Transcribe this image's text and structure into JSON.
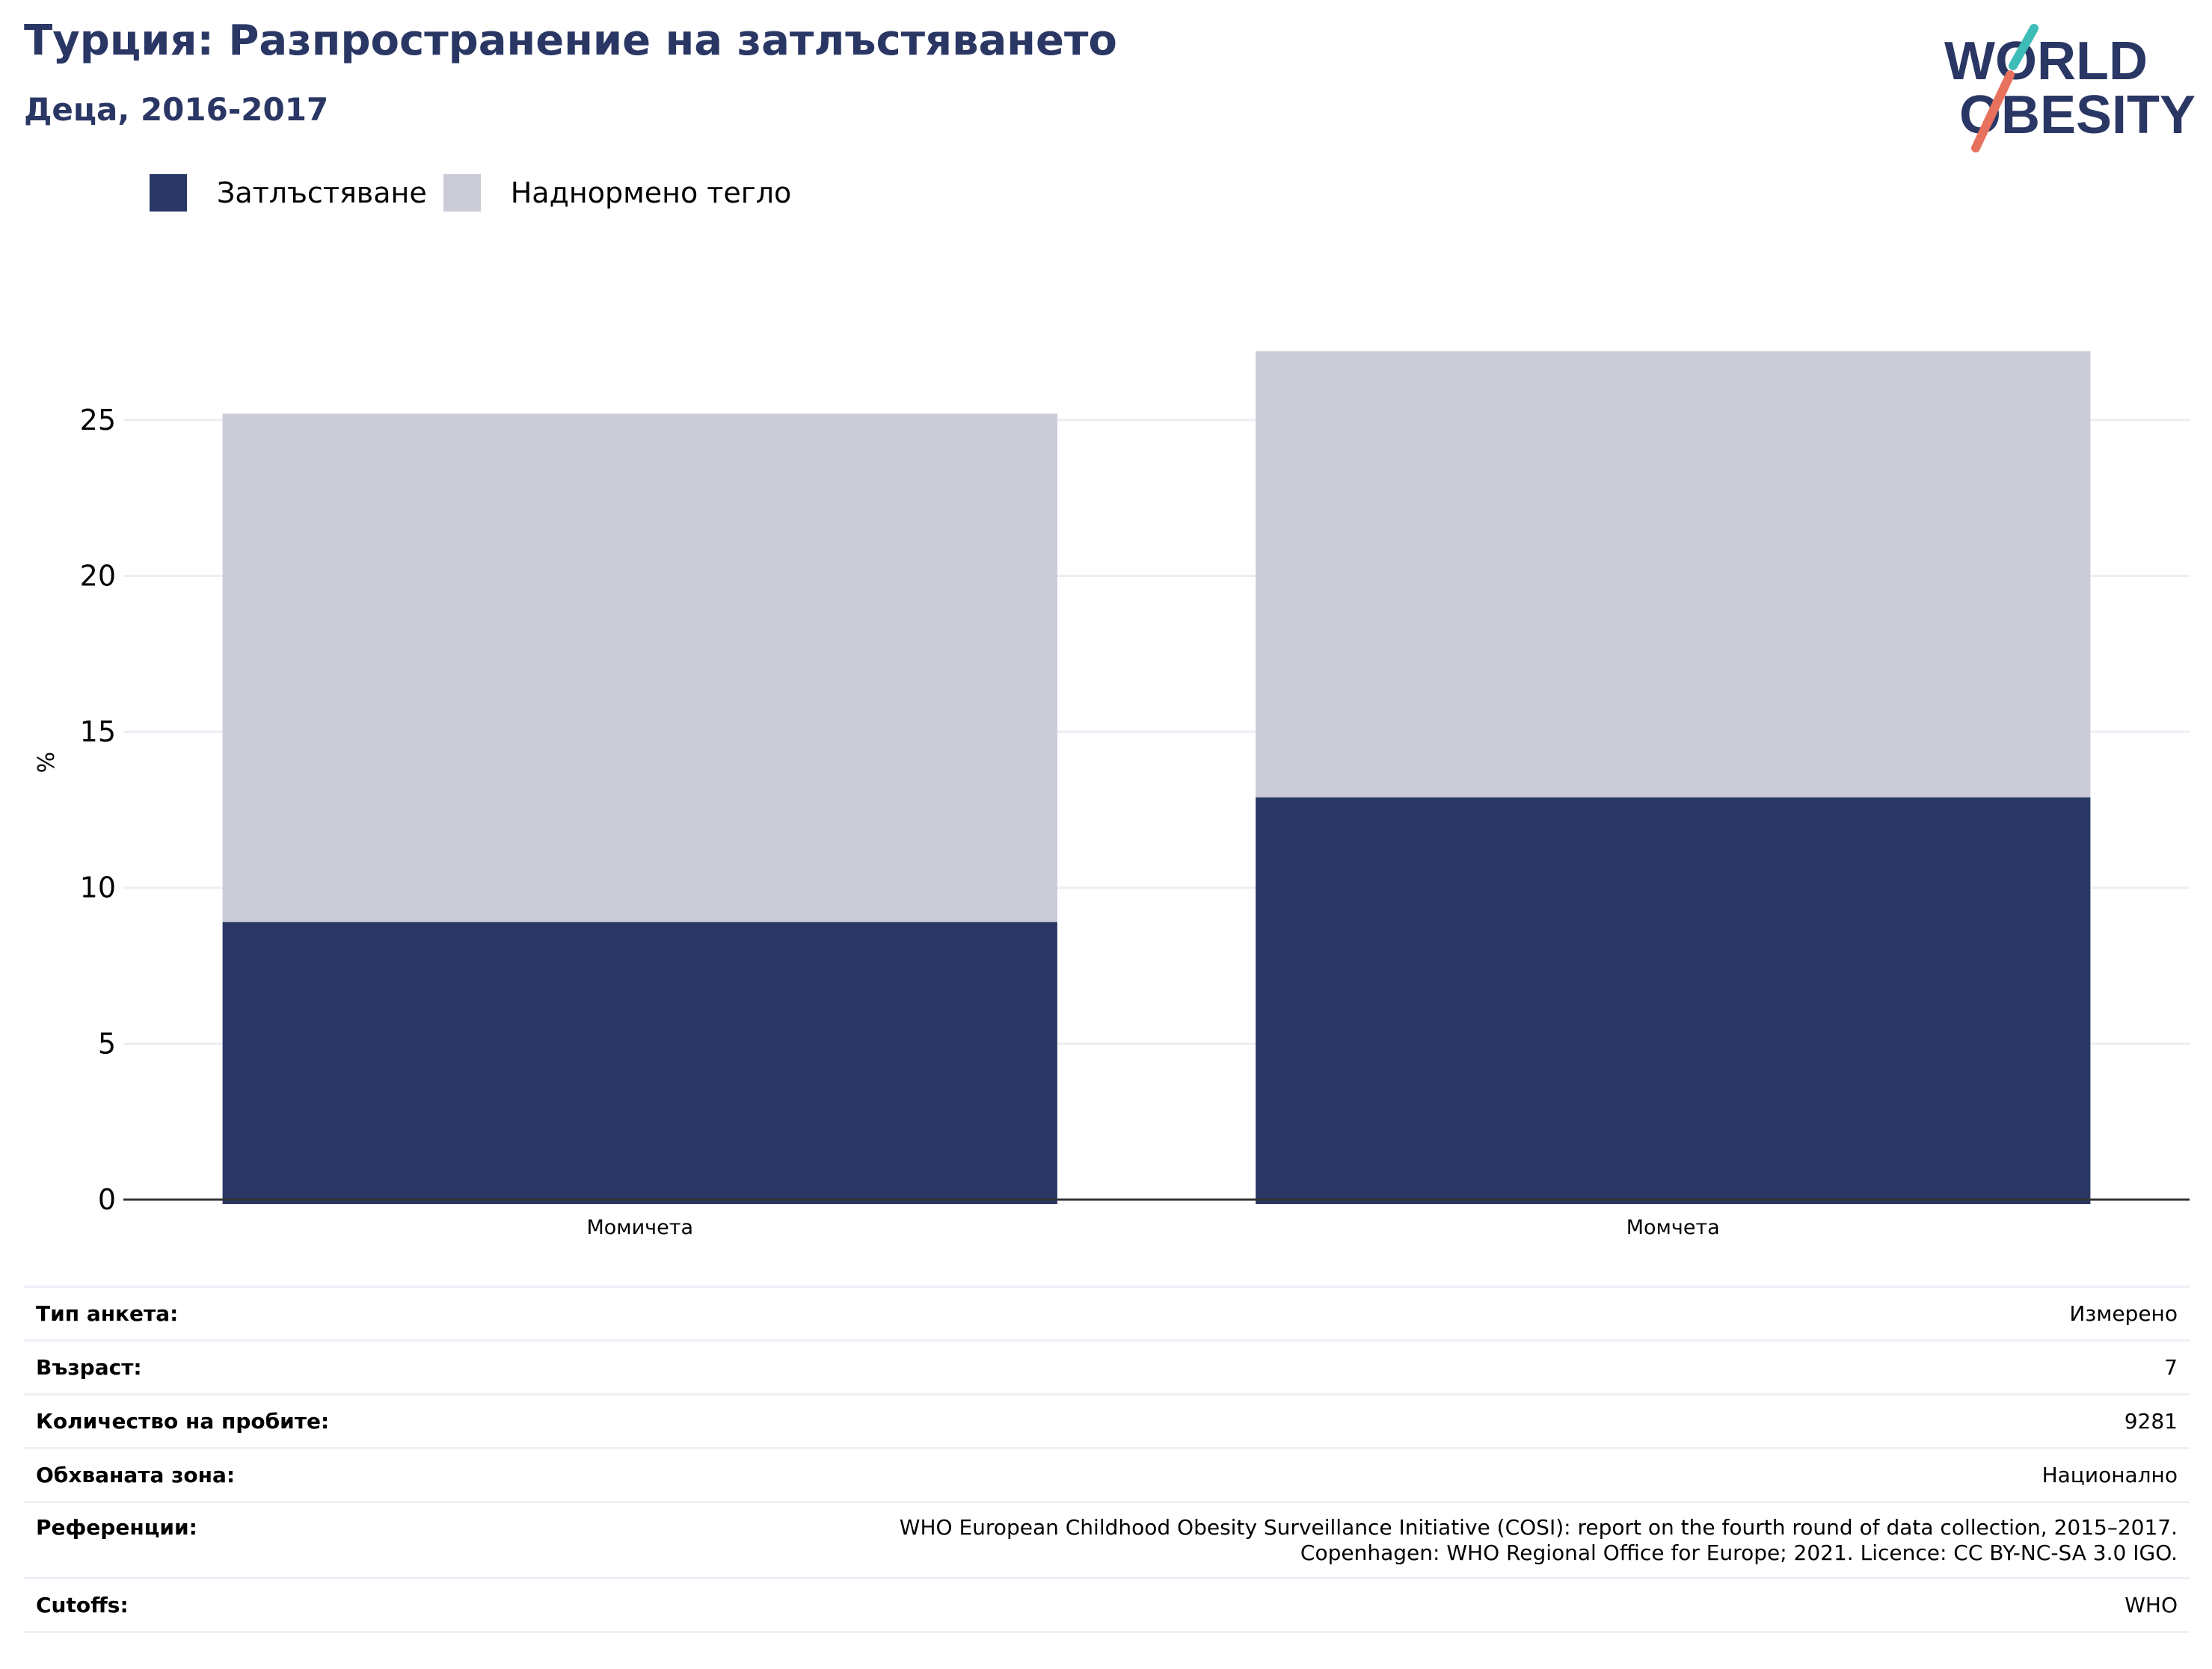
{
  "title": "Турция: Разпространение на затлъстяването",
  "subtitle": "Деца, 2016-2017",
  "logo": {
    "line1": "WORLD",
    "line2": "OBESITY"
  },
  "colors": {
    "obesity": "#2a3764",
    "overweight": "#cacbd7",
    "grid": "#eceef4",
    "axis": "#333333",
    "title": "#2a3764",
    "logo_teal": "#3dbcb8",
    "logo_coral": "#e8715e"
  },
  "chart_data": {
    "type": "bar",
    "stacked": true,
    "categories": [
      "Момичета",
      "Момчета"
    ],
    "series": [
      {
        "name": "Затлъстяване",
        "values": [
          8.9,
          12.9
        ]
      },
      {
        "name": "Наднормено тегло",
        "values": [
          16.3,
          14.3
        ]
      }
    ],
    "ylabel": "%",
    "yticks": [
      0,
      5,
      10,
      15,
      20,
      25
    ],
    "ylim": [
      0,
      27.2
    ],
    "grid": true,
    "legend_position": "top-left"
  },
  "meta": [
    {
      "key": "Тип анкета:",
      "value": "Измерено"
    },
    {
      "key": "Възраст:",
      "value": "7"
    },
    {
      "key": "Количество на пробите:",
      "value": "9281"
    },
    {
      "key": "Обхваната зона:",
      "value": "Национално"
    },
    {
      "key": "Референции:",
      "value": "WHO European Childhood Obesity Surveillance Initiative (COSI): report on the fourth round of data collection, 2015–2017. Copenhagen: WHO Regional Office for Europe; 2021. Licence: CC BY-NC-SA 3.0 IGO."
    },
    {
      "key": "Cutoffs:",
      "value": "WHO"
    }
  ]
}
